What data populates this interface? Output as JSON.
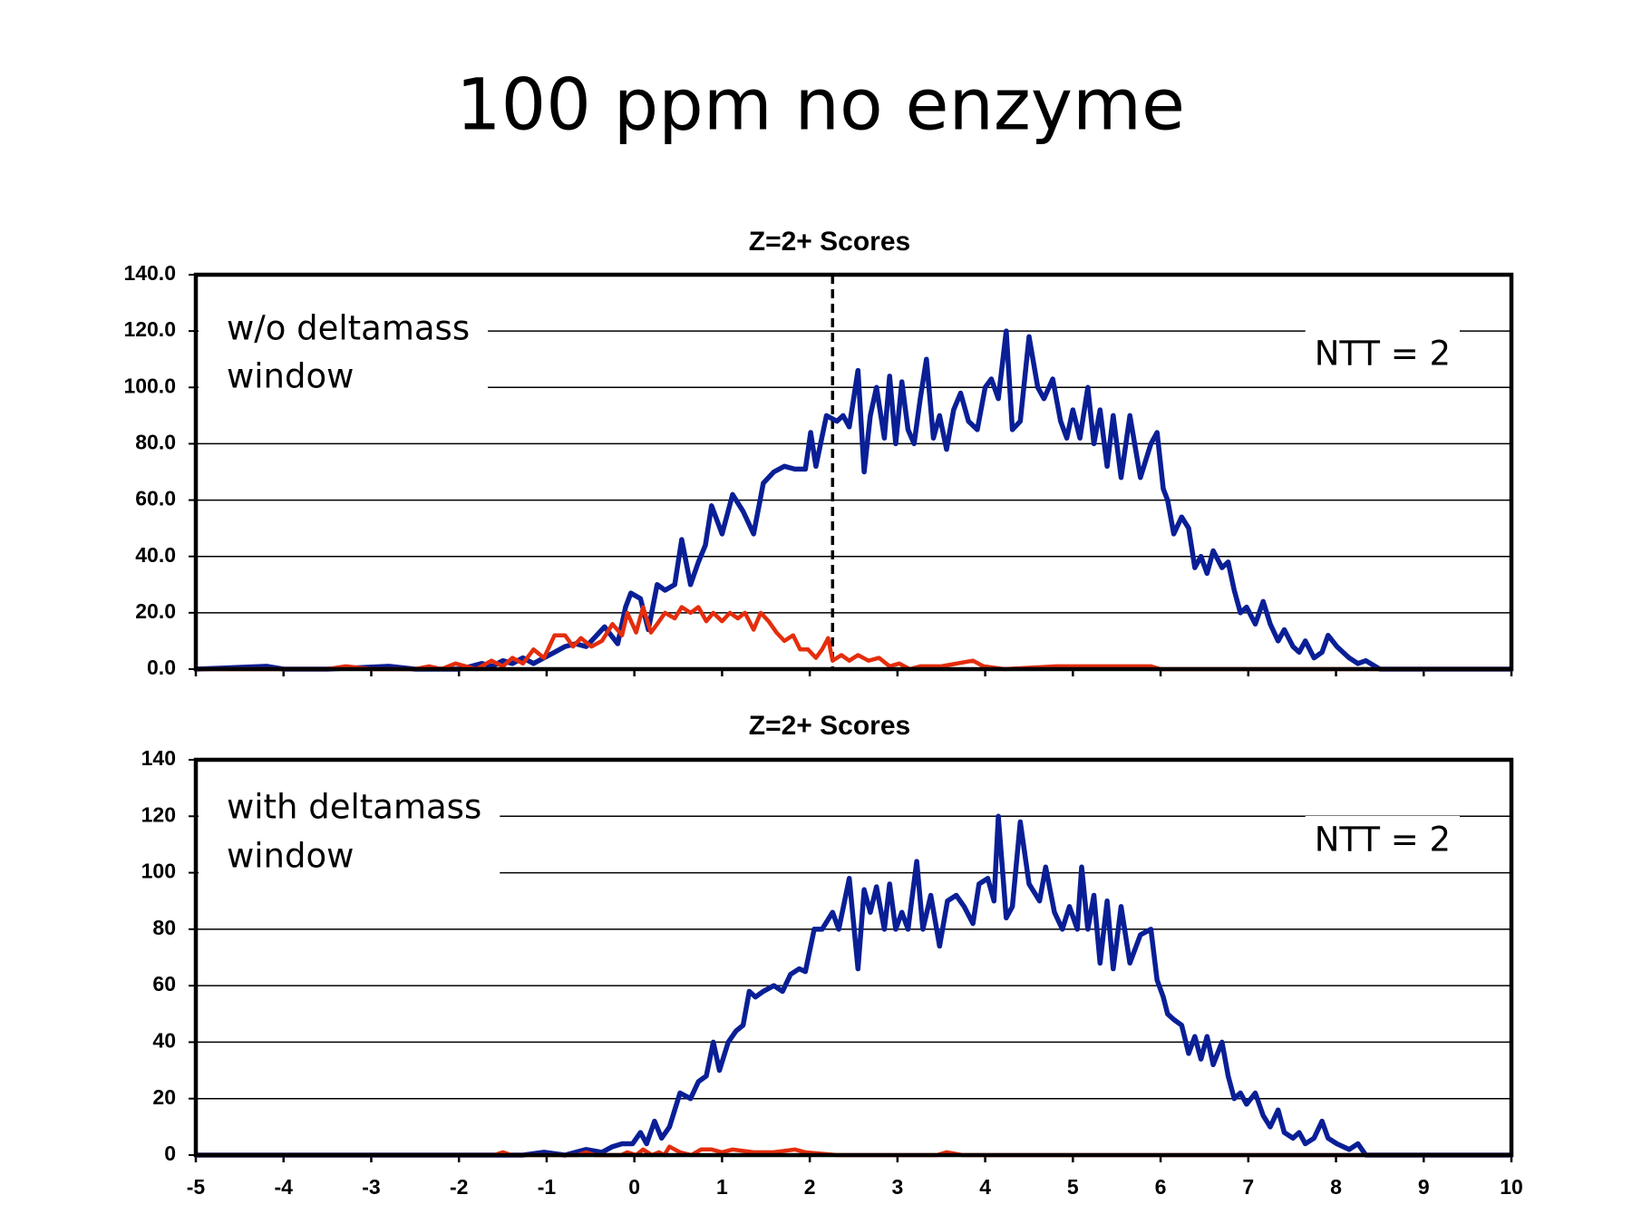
{
  "title": "100 ppm no enzyme",
  "chart_data": [
    {
      "type": "line",
      "title": "Z=2+ Scores",
      "annotation": [
        "w/o deltamass",
        "window"
      ],
      "note": "NTT = 2",
      "vline": 2.26,
      "xlim": [
        -5,
        10
      ],
      "xticks": [
        -5,
        -4,
        -3,
        -2,
        -1,
        0,
        1,
        2,
        3,
        4,
        5,
        6,
        7,
        8,
        9,
        10
      ],
      "show_xtick_labels": false,
      "ylim": [
        0,
        140
      ],
      "yticks": [
        {
          "value": 0,
          "label": "0.0"
        },
        {
          "value": 20,
          "label": "20.0"
        },
        {
          "value": 40,
          "label": "40.0"
        },
        {
          "value": 60,
          "label": "60.0"
        },
        {
          "value": 80,
          "label": "80.0"
        },
        {
          "value": 100,
          "label": "100.0"
        },
        {
          "value": 120,
          "label": "120.0"
        },
        {
          "value": 140,
          "label": "140.0"
        }
      ],
      "grid": true,
      "series": [
        {
          "color": "#0a1f96",
          "x": [
            -5,
            -4.19,
            -4,
            -3.5,
            -2.8,
            -2.5,
            -2,
            -1.86,
            -1.74,
            -1.62,
            -1.5,
            -1.39,
            -1.27,
            -1.15,
            -1.03,
            -0.91,
            -0.79,
            -0.67,
            -0.55,
            -0.43,
            -0.34,
            -0.19,
            -0.1,
            -0.04,
            0.07,
            0.16,
            0.26,
            0.35,
            0.46,
            0.54,
            0.64,
            0.73,
            0.81,
            0.88,
            1.0,
            1.12,
            1.24,
            1.36,
            1.47,
            1.59,
            1.71,
            1.83,
            1.95,
            2.01,
            2.07,
            2.19,
            2.31,
            2.38,
            2.45,
            2.55,
            2.62,
            2.69,
            2.76,
            2.85,
            2.91,
            2.98,
            3.05,
            3.12,
            3.19,
            3.26,
            3.33,
            3.41,
            3.48,
            3.56,
            3.64,
            3.72,
            3.81,
            3.91,
            4.0,
            4.07,
            4.15,
            4.24,
            4.31,
            4.4,
            4.5,
            4.6,
            4.67,
            4.77,
            4.86,
            4.93,
            5.0,
            5.08,
            5.17,
            5.24,
            5.31,
            5.39,
            5.46,
            5.55,
            5.65,
            5.77,
            5.89,
            5.96,
            6.03,
            6.08,
            6.15,
            6.24,
            6.32,
            6.39,
            6.46,
            6.53,
            6.6,
            6.7,
            6.77,
            6.84,
            6.91,
            6.98,
            7.08,
            7.17,
            7.25,
            7.34,
            7.41,
            7.51,
            7.58,
            7.65,
            7.75,
            7.84,
            7.91,
            8.01,
            8.15,
            8.25,
            8.34,
            8.5,
            10
          ],
          "values": [
            0,
            1,
            0,
            0,
            1,
            0,
            0,
            1,
            2,
            1,
            3,
            2,
            4,
            2,
            4,
            6,
            8,
            9,
            8,
            12,
            15,
            9,
            22,
            27,
            25,
            14,
            30,
            28,
            30,
            46,
            30,
            38,
            44,
            58,
            48,
            62,
            56,
            48,
            66,
            70,
            72,
            71,
            71,
            84,
            72,
            90,
            88,
            90,
            86,
            106,
            70,
            90,
            100,
            82,
            104,
            80,
            102,
            85,
            80,
            96,
            110,
            82,
            90,
            78,
            92,
            98,
            88,
            85,
            100,
            103,
            96,
            120,
            85,
            88,
            118,
            100,
            96,
            103,
            88,
            82,
            92,
            82,
            100,
            80,
            92,
            72,
            90,
            68,
            90,
            68,
            80,
            84,
            64,
            60,
            48,
            54,
            50,
            36,
            40,
            34,
            42,
            36,
            38,
            28,
            20,
            22,
            16,
            24,
            16,
            10,
            14,
            8,
            6,
            10,
            4,
            6,
            12,
            8,
            4,
            2,
            3,
            0,
            0
          ]
        },
        {
          "color": "#e52d0c",
          "x": [
            -5,
            -3.5,
            -3.29,
            -3,
            -2.5,
            -2.34,
            -2.2,
            -2.04,
            -1.8,
            -1.63,
            -1.5,
            -1.39,
            -1.27,
            -1.15,
            -1.03,
            -0.91,
            -0.79,
            -0.7,
            -0.61,
            -0.49,
            -0.37,
            -0.25,
            -0.14,
            -0.08,
            0.02,
            0.1,
            0.19,
            0.26,
            0.35,
            0.46,
            0.54,
            0.64,
            0.73,
            0.82,
            0.9,
            1.0,
            1.09,
            1.18,
            1.26,
            1.36,
            1.44,
            1.53,
            1.62,
            1.71,
            1.81,
            1.89,
            1.98,
            2.07,
            2.14,
            2.21,
            2.26,
            2.36,
            2.45,
            2.55,
            2.67,
            2.79,
            2.91,
            3.02,
            3.14,
            3.26,
            3.5,
            3.86,
            3.98,
            4.22,
            4.81,
            5.89,
            6.0,
            10
          ],
          "values": [
            0,
            0,
            1,
            0,
            0,
            1,
            0,
            2,
            0,
            3,
            1,
            4,
            2,
            7,
            4,
            12,
            12,
            8,
            11,
            8,
            10,
            16,
            12,
            20,
            13,
            22,
            13,
            16,
            20,
            18,
            22,
            20,
            22,
            17,
            20,
            17,
            20,
            18,
            20,
            14,
            20,
            17,
            13,
            10,
            12,
            7,
            7,
            4,
            7,
            11,
            3,
            5,
            3,
            5,
            3,
            4,
            1,
            2,
            0,
            1,
            1,
            3,
            1,
            0,
            1,
            1,
            0,
            0
          ]
        }
      ]
    },
    {
      "type": "line",
      "title": "Z=2+ Scores",
      "annotation": [
        "with deltamass",
        "window"
      ],
      "note": "NTT = 2",
      "xlim": [
        -5,
        10
      ],
      "xticks": [
        -5,
        -4,
        -3,
        -2,
        -1,
        0,
        1,
        2,
        3,
        4,
        5,
        6,
        7,
        8,
        9,
        10
      ],
      "show_xtick_labels": true,
      "ylim": [
        0,
        140
      ],
      "yticks": [
        0,
        20,
        40,
        60,
        80,
        100,
        120,
        140
      ],
      "grid": true,
      "series": [
        {
          "color": "#0a1f96",
          "x": [
            -5,
            -2,
            -1.27,
            -1.03,
            -0.79,
            -0.55,
            -0.37,
            -0.25,
            -0.14,
            -0.02,
            0.07,
            0.14,
            0.23,
            0.31,
            0.4,
            0.52,
            0.64,
            0.73,
            0.82,
            0.9,
            0.97,
            1.07,
            1.16,
            1.24,
            1.31,
            1.38,
            1.47,
            1.59,
            1.69,
            1.78,
            1.88,
            1.95,
            2.05,
            2.14,
            2.26,
            2.33,
            2.45,
            2.55,
            2.62,
            2.69,
            2.76,
            2.85,
            2.91,
            2.98,
            3.05,
            3.12,
            3.22,
            3.29,
            3.38,
            3.48,
            3.57,
            3.67,
            3.76,
            3.86,
            3.93,
            4.03,
            4.1,
            4.15,
            4.24,
            4.31,
            4.4,
            4.5,
            4.62,
            4.69,
            4.79,
            4.88,
            4.96,
            5.05,
            5.1,
            5.17,
            5.24,
            5.31,
            5.39,
            5.46,
            5.55,
            5.65,
            5.77,
            5.89,
            5.96,
            6.03,
            6.08,
            6.15,
            6.24,
            6.32,
            6.39,
            6.46,
            6.53,
            6.6,
            6.7,
            6.77,
            6.84,
            6.91,
            6.98,
            7.08,
            7.17,
            7.25,
            7.34,
            7.41,
            7.51,
            7.58,
            7.65,
            7.75,
            7.84,
            7.91,
            8.01,
            8.15,
            8.25,
            8.34,
            8.5,
            10
          ],
          "values": [
            0,
            0,
            0,
            1,
            0,
            2,
            1,
            3,
            4,
            4,
            8,
            4,
            12,
            6,
            10,
            22,
            20,
            26,
            28,
            40,
            30,
            40,
            44,
            46,
            58,
            56,
            58,
            60,
            58,
            64,
            66,
            65,
            80,
            80,
            86,
            80,
            98,
            66,
            94,
            86,
            95,
            80,
            96,
            80,
            86,
            80,
            104,
            80,
            92,
            74,
            90,
            92,
            88,
            82,
            96,
            98,
            90,
            120,
            84,
            88,
            118,
            96,
            90,
            102,
            86,
            80,
            88,
            80,
            102,
            80,
            92,
            68,
            90,
            66,
            88,
            68,
            78,
            80,
            62,
            56,
            50,
            48,
            46,
            36,
            42,
            34,
            42,
            32,
            40,
            28,
            20,
            22,
            18,
            22,
            14,
            10,
            16,
            8,
            6,
            8,
            4,
            6,
            12,
            6,
            4,
            2,
            4,
            0,
            0,
            0
          ]
        },
        {
          "color": "#e52d0c",
          "x": [
            -5,
            -1.6,
            -1.5,
            -1.4,
            -0.65,
            -0.55,
            -0.45,
            -0.15,
            -0.08,
            0.02,
            0.1,
            0.2,
            0.28,
            0.34,
            0.4,
            0.52,
            0.65,
            0.76,
            0.88,
            1.0,
            1.12,
            1.36,
            1.59,
            1.83,
            1.95,
            2.31,
            3.45,
            3.56,
            3.74,
            10
          ],
          "values": [
            0,
            0,
            1,
            0,
            0,
            1,
            0,
            0,
            1,
            0,
            2,
            0,
            1,
            0,
            3,
            1,
            0,
            2,
            2,
            1,
            2,
            1,
            1,
            2,
            1,
            0,
            0,
            1,
            0,
            0
          ]
        }
      ]
    }
  ]
}
